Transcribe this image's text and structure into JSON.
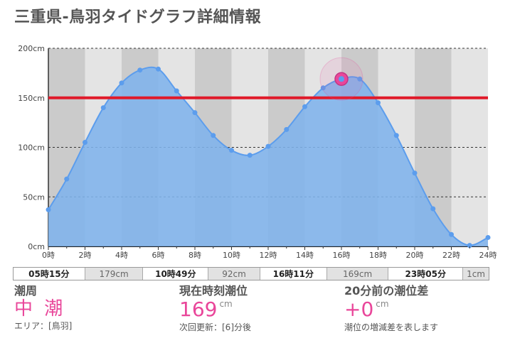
{
  "title": "三重県-鳥羽タイドグラフ詳細情報",
  "chart_data": {
    "type": "area",
    "x": [
      0,
      1,
      2,
      3,
      4,
      5,
      6,
      7,
      8,
      9,
      10,
      11,
      12,
      13,
      14,
      15,
      16,
      17,
      18,
      19,
      20,
      21,
      22,
      23,
      24
    ],
    "x_ticks": [
      "0時",
      "2時",
      "4時",
      "6時",
      "8時",
      "10時",
      "12時",
      "14時",
      "16時",
      "18時",
      "20時",
      "22時",
      "24時"
    ],
    "y_ticks": [
      "0cm",
      "50cm",
      "100cm",
      "150cm",
      "200cm"
    ],
    "ylim": [
      0,
      200
    ],
    "xlim": [
      0,
      24
    ],
    "series": [
      {
        "values": [
          37,
          68,
          105,
          140,
          165,
          178,
          179,
          157,
          135,
          112,
          97,
          92,
          101,
          118,
          141,
          160,
          169,
          169,
          145,
          112,
          74,
          38,
          12,
          1,
          9
        ]
      }
    ],
    "reference_line": 150,
    "current_point": {
      "x": 16,
      "y": 169
    },
    "colors": {
      "area": "#7fb3ec",
      "line": "#5c9ded",
      "reference": "#e01a2a",
      "highlight": "#e9469a",
      "band_dark": "#cbcbcb",
      "band_light": "#e4e4e4"
    }
  },
  "tides": [
    {
      "time": "05時15分",
      "level": "179cm"
    },
    {
      "time": "10時49分",
      "level": "92cm"
    },
    {
      "time": "16時11分",
      "level": "169cm"
    },
    {
      "time": "23時05分",
      "level": "1cm"
    }
  ],
  "info": {
    "cycle_label": "潮周",
    "cycle_value": "中 潮",
    "area": "エリア：[鳥羽]",
    "current_label": "現在時刻潮位",
    "current_value": "169",
    "current_unit": "cm",
    "update_note": "次回更新：[6]分後",
    "diff_label": "20分前の潮位差",
    "diff_value": "+0",
    "diff_unit": "cm",
    "diff_note": "潮位の増減差を表します"
  }
}
